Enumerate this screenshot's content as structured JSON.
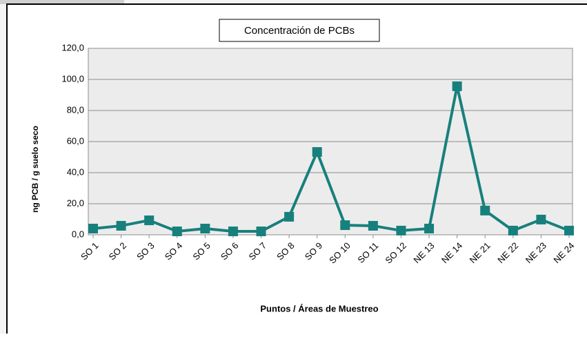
{
  "chart_data": {
    "type": "line",
    "title": "Concentración de PCBs",
    "x_label": "Puntos / Áreas de Muestreo",
    "y_label": "ng PCB / g suelo seco",
    "categories": [
      "SO 1",
      "SO 2",
      "SO 3",
      "SO 4",
      "SO 5",
      "SO 6",
      "SO 7",
      "SO 8",
      "SO 9",
      "SO 10",
      "SO 11",
      "SO 12",
      "NE 13",
      "NE 14",
      "NE 21",
      "NE 22",
      "NE 23",
      "NE 24"
    ],
    "series": [
      {
        "name": "Concentración de PCBs",
        "color": "#17807c",
        "values": [
          4.0,
          5.8,
          9.3,
          2.2,
          4.0,
          2.2,
          2.2,
          11.6,
          53.3,
          6.2,
          5.8,
          2.7,
          4.0,
          95.6,
          15.6,
          2.7,
          9.8,
          2.7
        ]
      }
    ],
    "ylim": [
      0,
      120
    ],
    "yticks": [
      {
        "value": 0,
        "label": "0,0"
      },
      {
        "value": 20,
        "label": "20,0"
      },
      {
        "value": 40,
        "label": "40,0"
      },
      {
        "value": 60,
        "label": "60,0"
      },
      {
        "value": 80,
        "label": "80,0"
      },
      {
        "value": 100,
        "label": "100,0"
      },
      {
        "value": 120,
        "label": "120,0"
      }
    ],
    "grid": true
  }
}
